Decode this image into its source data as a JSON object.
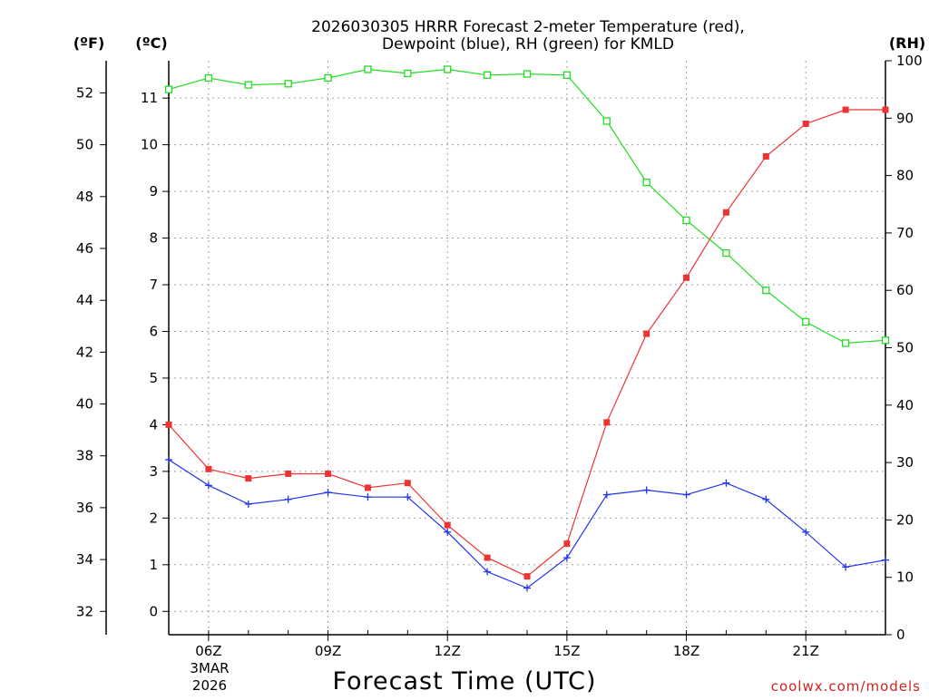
{
  "chart_data": {
    "type": "line",
    "title": "2026030305 HRRR Forecast 2-meter Temperature (red),",
    "subtitle": "Dewpoint (blue), RH (green) for KMLD",
    "xlabel": "Forecast Time (UTC)",
    "credit": "coolwx.com/models",
    "left_unit_f": "(ºF)",
    "left_unit_c": "(ºC)",
    "right_unit": "(RH)",
    "x_hours": [
      5,
      6,
      7,
      8,
      9,
      10,
      11,
      12,
      13,
      14,
      15,
      16,
      17,
      18,
      19,
      20,
      21,
      22,
      23
    ],
    "x_range": [
      5,
      23
    ],
    "x_ticks": [
      {
        "hour": 6,
        "label": "06Z"
      },
      {
        "hour": 9,
        "label": "09Z"
      },
      {
        "hour": 12,
        "label": "12Z"
      },
      {
        "hour": 15,
        "label": "15Z"
      },
      {
        "hour": 18,
        "label": "18Z"
      },
      {
        "hour": 21,
        "label": "21Z"
      }
    ],
    "date_label": [
      "3MAR",
      "2026"
    ],
    "c_range": [
      -0.5,
      11.8
    ],
    "c_ticks": [
      0,
      1,
      2,
      3,
      4,
      5,
      6,
      7,
      8,
      9,
      10,
      11
    ],
    "f_ticks": [
      32,
      34,
      36,
      38,
      40,
      42,
      44,
      46,
      48,
      50,
      52
    ],
    "rh_range": [
      0,
      100
    ],
    "rh_ticks": [
      0,
      10,
      20,
      30,
      40,
      50,
      60,
      70,
      80,
      90,
      100
    ],
    "series": [
      {
        "name": "Temperature",
        "color": "#ee3333",
        "marker": "filled-square",
        "axis": "celsius",
        "values": [
          4.0,
          3.05,
          2.85,
          2.95,
          2.95,
          2.65,
          2.75,
          1.85,
          1.15,
          0.75,
          1.45,
          4.05,
          5.95,
          7.15,
          8.55,
          9.75,
          10.45,
          10.75,
          10.75
        ]
      },
      {
        "name": "Dewpoint",
        "color": "#2233ee",
        "marker": "plus",
        "axis": "celsius",
        "values": [
          3.25,
          2.7,
          2.3,
          2.4,
          2.55,
          2.45,
          2.45,
          1.7,
          0.85,
          0.5,
          1.15,
          2.5,
          2.6,
          2.5,
          2.75,
          2.4,
          1.7,
          0.95,
          1.1
        ]
      },
      {
        "name": "RH",
        "color": "#22dd22",
        "marker": "open-square",
        "axis": "rh",
        "values": [
          95.0,
          97.0,
          95.8,
          96.0,
          97.0,
          98.5,
          97.8,
          98.5,
          97.5,
          97.7,
          97.5,
          89.5,
          78.8,
          72.2,
          66.5,
          60.0,
          54.5,
          50.8,
          51.3
        ]
      }
    ]
  }
}
